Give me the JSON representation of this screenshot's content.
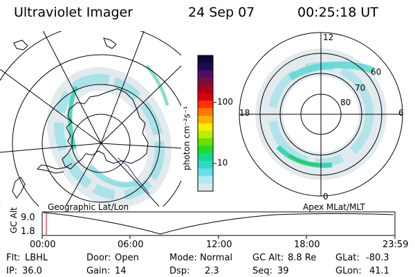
{
  "header": {
    "instrument": "Ultraviolet Imager",
    "date": "24 Sep 07",
    "time": "00:25:18 UT"
  },
  "left_panel": {
    "caption": "Geographic Lat/Lon"
  },
  "right_panel": {
    "caption": "Apex MLat/MLT",
    "mlt_labels": {
      "top": "12",
      "right": "6",
      "bottom": "0",
      "left": "18"
    },
    "mlat_labels": [
      "60",
      "70",
      "80"
    ]
  },
  "colorbar": {
    "unit_label": "photon cm⁻²s⁻¹",
    "tick_labels": [
      "100",
      "10"
    ],
    "colors": [
      "#0a0a38",
      "#200a55",
      "#4a0f6a",
      "#7a0d3a",
      "#b00018",
      "#d80010",
      "#ff3300",
      "#ff7a00",
      "#ffb000",
      "#f4f000",
      "#b8f000",
      "#66e000",
      "#1edc28",
      "#14d890",
      "#30d8c8",
      "#68e0e8",
      "#b0eaf0",
      "#dde8ec"
    ]
  },
  "timeline": {
    "ylabel": "GC Alt",
    "y_ticks": [
      "9.0",
      "1.8"
    ],
    "x_ticks": [
      "00:00",
      "06:00",
      "12:00",
      "18:00",
      "23:59"
    ]
  },
  "status": {
    "row1": [
      {
        "label": "Flt:",
        "value": "LBHL"
      },
      {
        "label": "Door:",
        "value": "Open"
      },
      {
        "label": "Mode:",
        "value": "Normal"
      },
      {
        "label": "GC Alt:",
        "value": "8.8 Re"
      },
      {
        "label": "GLat:",
        "value": "-80.3"
      }
    ],
    "row2": [
      {
        "label": "IP:",
        "value": "36.0"
      },
      {
        "label": "Gain:",
        "value": "14"
      },
      {
        "label": "Dsp:",
        "value": "2.3"
      },
      {
        "label": "Seq:",
        "value": "39"
      },
      {
        "label": "GLon:",
        "value": "41.1"
      }
    ]
  },
  "colors": {
    "aurora_faint": "#d8e6ea",
    "aurora_mid": "#7fd8e0",
    "aurora_bright": "#26d0b4",
    "aurora_peak": "#1fd040",
    "timeline_marker": "#cc0000",
    "coast_overlay": "#1a2a8a"
  }
}
